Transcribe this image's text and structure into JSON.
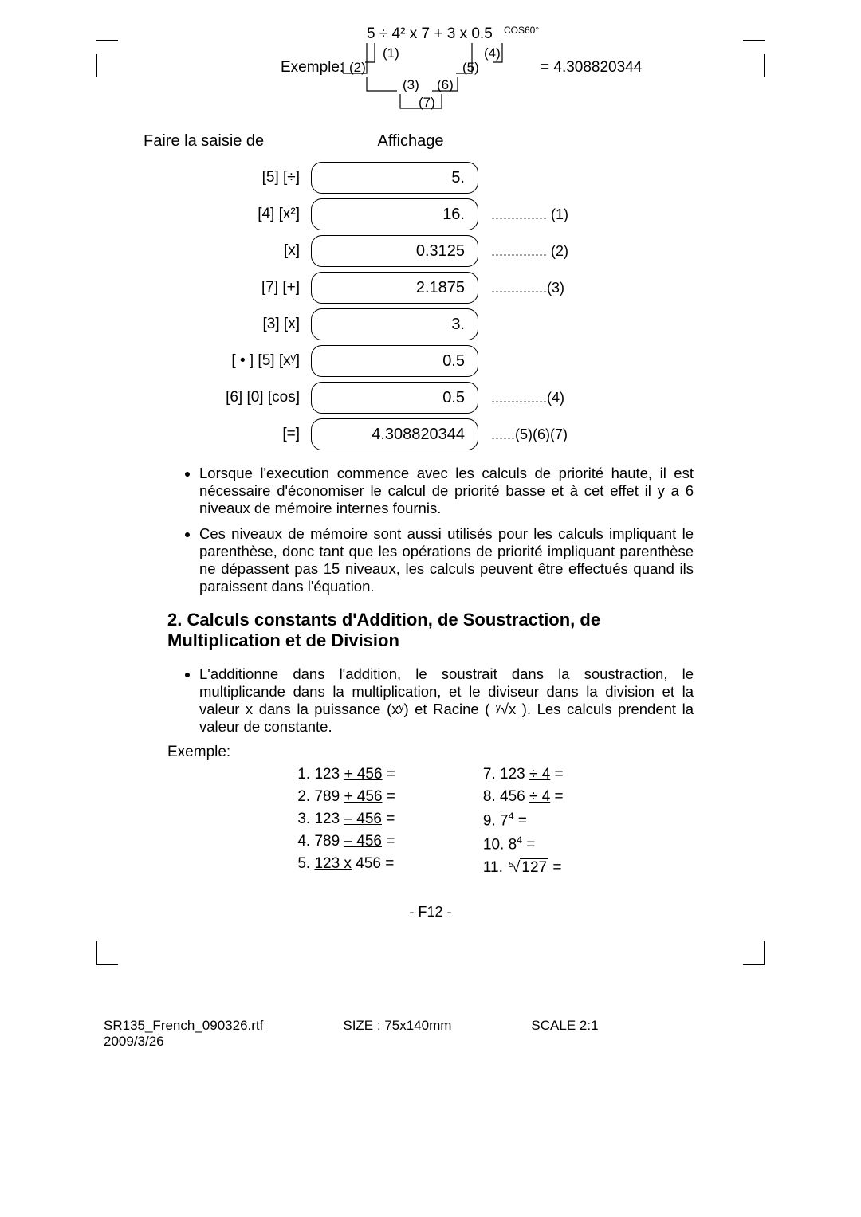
{
  "example": {
    "prefix": "Exemple:",
    "expr_top": "5 ÷ 4² x 7 + 3 x 0.5^COS60°",
    "result": "= 4.308820344",
    "tree_labels": [
      "(1)",
      "(2)",
      "(3)",
      "(4)",
      "(5)",
      "(6)",
      "(7)"
    ]
  },
  "table_head": {
    "left": "Faire la saisie de",
    "right": "Affichage"
  },
  "rows": [
    {
      "key": "[5] [÷]",
      "disp": "5.",
      "note": ""
    },
    {
      "key": "[4] [x²]",
      "disp": "16.",
      "note": ".............. (1)"
    },
    {
      "key": "[x]",
      "disp": "0.3125",
      "note": ".............. (2)"
    },
    {
      "key": "[7] [+]",
      "disp": "2.1875",
      "note": "..............(3)"
    },
    {
      "key": "[3] [x]",
      "disp": "3.",
      "note": ""
    },
    {
      "key": "[ • ] [5] [xʸ]",
      "disp": "0.5",
      "note": ""
    },
    {
      "key": "[6] [0] [cos]",
      "disp": "0.5",
      "note": "..............(4)"
    },
    {
      "key": "[=]",
      "disp": "4.308820344",
      "note": "......(5)(6)(7)"
    }
  ],
  "bullets": [
    "Lorsque l'execution commence avec les calculs de priorité haute, il est nécessaire d'économiser le calcul de priorité basse et à cet effet il y a 6 niveaux de mémoire internes fournis.",
    "Ces niveaux de mémoire sont aussi utilisés pour les calculs impliquant le parenthèse, donc tant que les opérations de priorité impliquant parenthèse ne dépassent pas 15 niveaux, les calculs peuvent être effectués quand ils paraissent dans l'équation."
  ],
  "section_title": "2. Calculs constants d'Addition, de Soustraction, de Multiplication et de Division",
  "section_bullet": "L'additionne dans l'addition, le soustrait dans la soustraction, le multiplicande dans la multiplication, et le diviseur dans la division et la valeur x dans la puissance (xʸ) et Racine ( ʸ√x ). Les calculs prendent la valeur de constante.",
  "exemple_label": "Exemple:",
  "examples_left": [
    "1. 123 <u>+ 456</u> =",
    "2. 789 <u>+ 456</u> =",
    "3. 123 <u>– 456</u> =",
    "4. 789 <u>– 456</u> =",
    "5. <u>123 x</u> 456 ="
  ],
  "examples_right": [
    "7.   123 <u>÷ 4</u> =",
    "8.   456 <u>÷ 4</u> =",
    "9.   7⁴ =",
    "10.  8⁴ =",
    "11.  ⁵√127   ="
  ],
  "page_num": "- F12 -",
  "footer": {
    "file": "SR135_French_090326.rtf",
    "date": "2009/3/26",
    "size": "SIZE   :   75x140mm",
    "scale": "SCALE   2:1"
  }
}
